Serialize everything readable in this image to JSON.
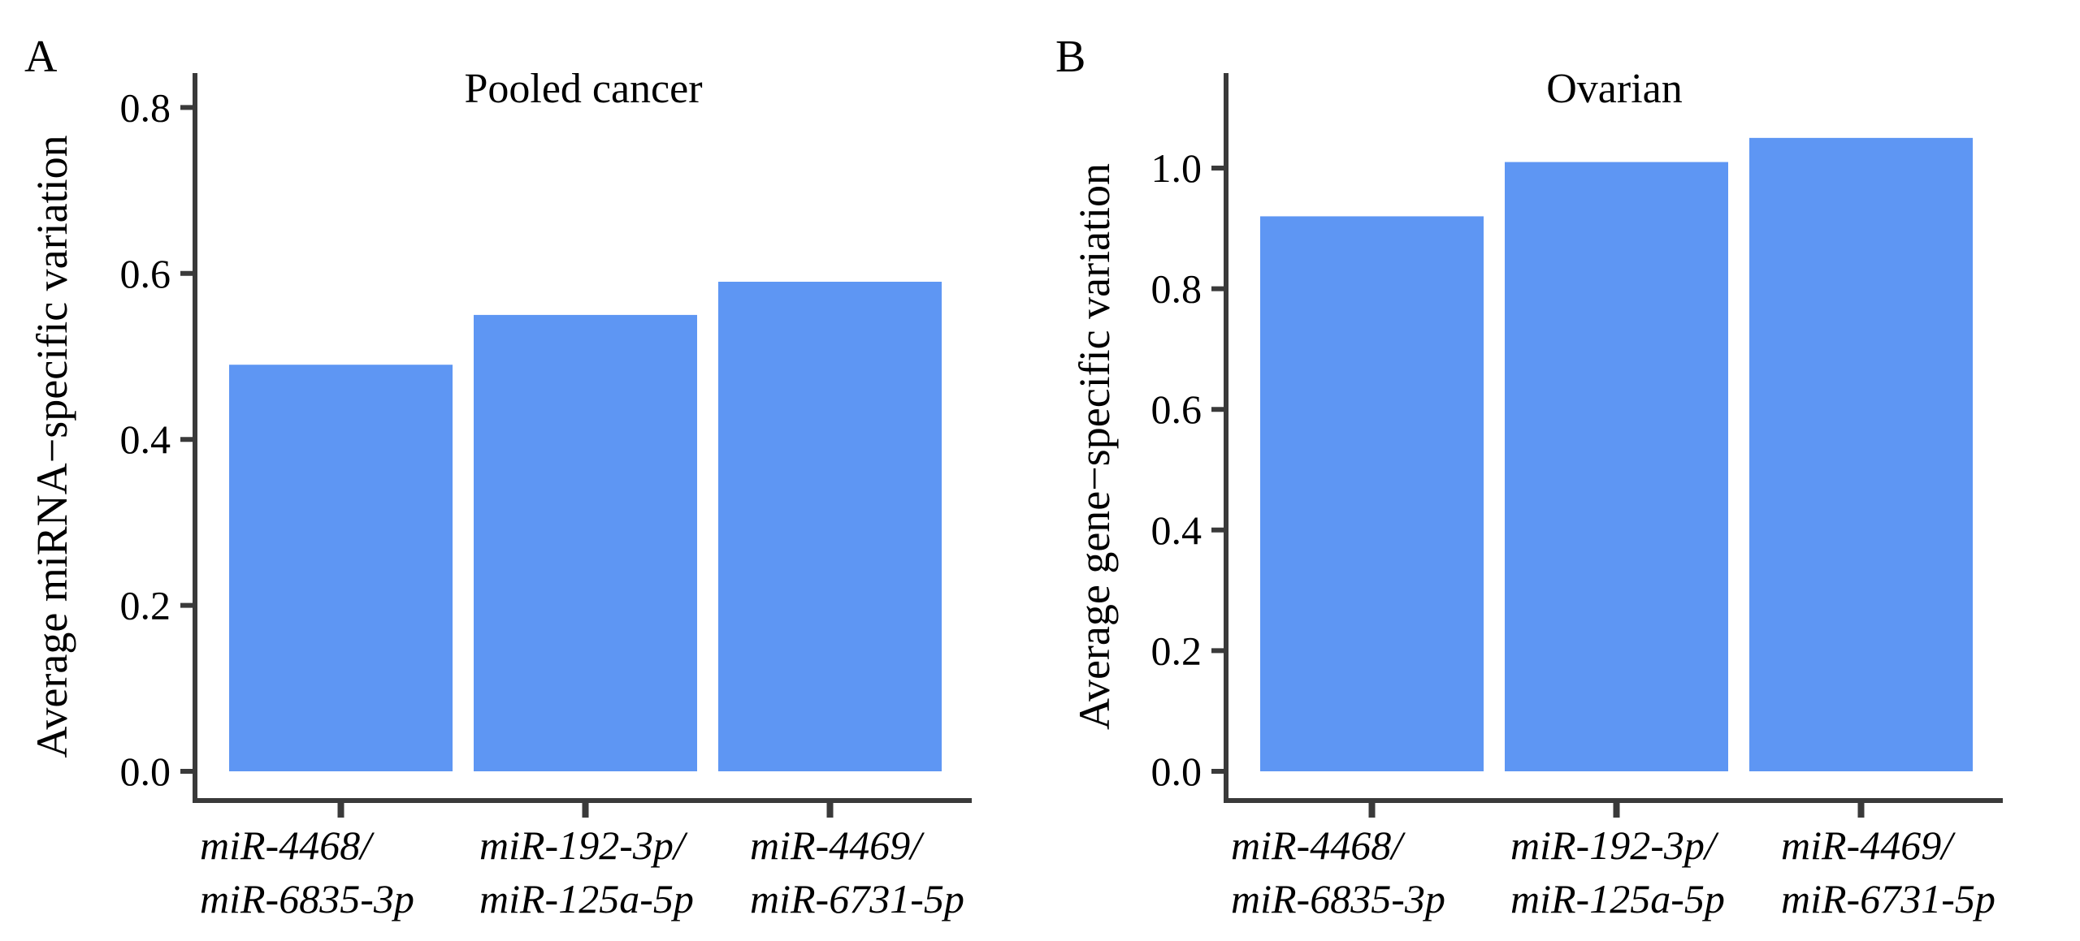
{
  "figure": {
    "background": "#ffffff",
    "bar_color": "#5E96F3",
    "axis_color": "#3a3a3a",
    "text_color": "#000000"
  },
  "chart_data": [
    {
      "type": "bar",
      "panel_label": "A",
      "title": "Pooled cancer",
      "xlabel": "",
      "ylabel": "Average miRNA−specific variation",
      "categories": [
        [
          "miR-4468/",
          "miR-6835-3p"
        ],
        [
          "miR-192-3p/",
          "miR-125a-5p"
        ],
        [
          "miR-4469/",
          "miR-6731-5p"
        ]
      ],
      "values": [
        0.49,
        0.55,
        0.59
      ],
      "yticks": [
        0.0,
        0.2,
        0.4,
        0.6,
        0.8
      ],
      "ytick_labels": [
        "0.0",
        "0.2",
        "0.4",
        "0.6",
        "0.8"
      ],
      "ylim": [
        0,
        0.84
      ],
      "grid": false,
      "legend": false
    },
    {
      "type": "bar",
      "panel_label": "B",
      "title": "Ovarian",
      "xlabel": "",
      "ylabel": "Average gene−specific variation",
      "categories": [
        [
          "miR-4468/",
          "miR-6835-3p"
        ],
        [
          "miR-192-3p/",
          "miR-125a-5p"
        ],
        [
          "miR-4469/",
          "miR-6731-5p"
        ]
      ],
      "values": [
        0.92,
        1.01,
        1.05
      ],
      "yticks": [
        0.0,
        0.2,
        0.4,
        0.6,
        0.8,
        1.0
      ],
      "ytick_labels": [
        "0.0",
        "0.2",
        "0.4",
        "0.6",
        "0.8",
        "1.0"
      ],
      "ylim": [
        0,
        1.16
      ],
      "grid": false,
      "legend": false
    }
  ]
}
